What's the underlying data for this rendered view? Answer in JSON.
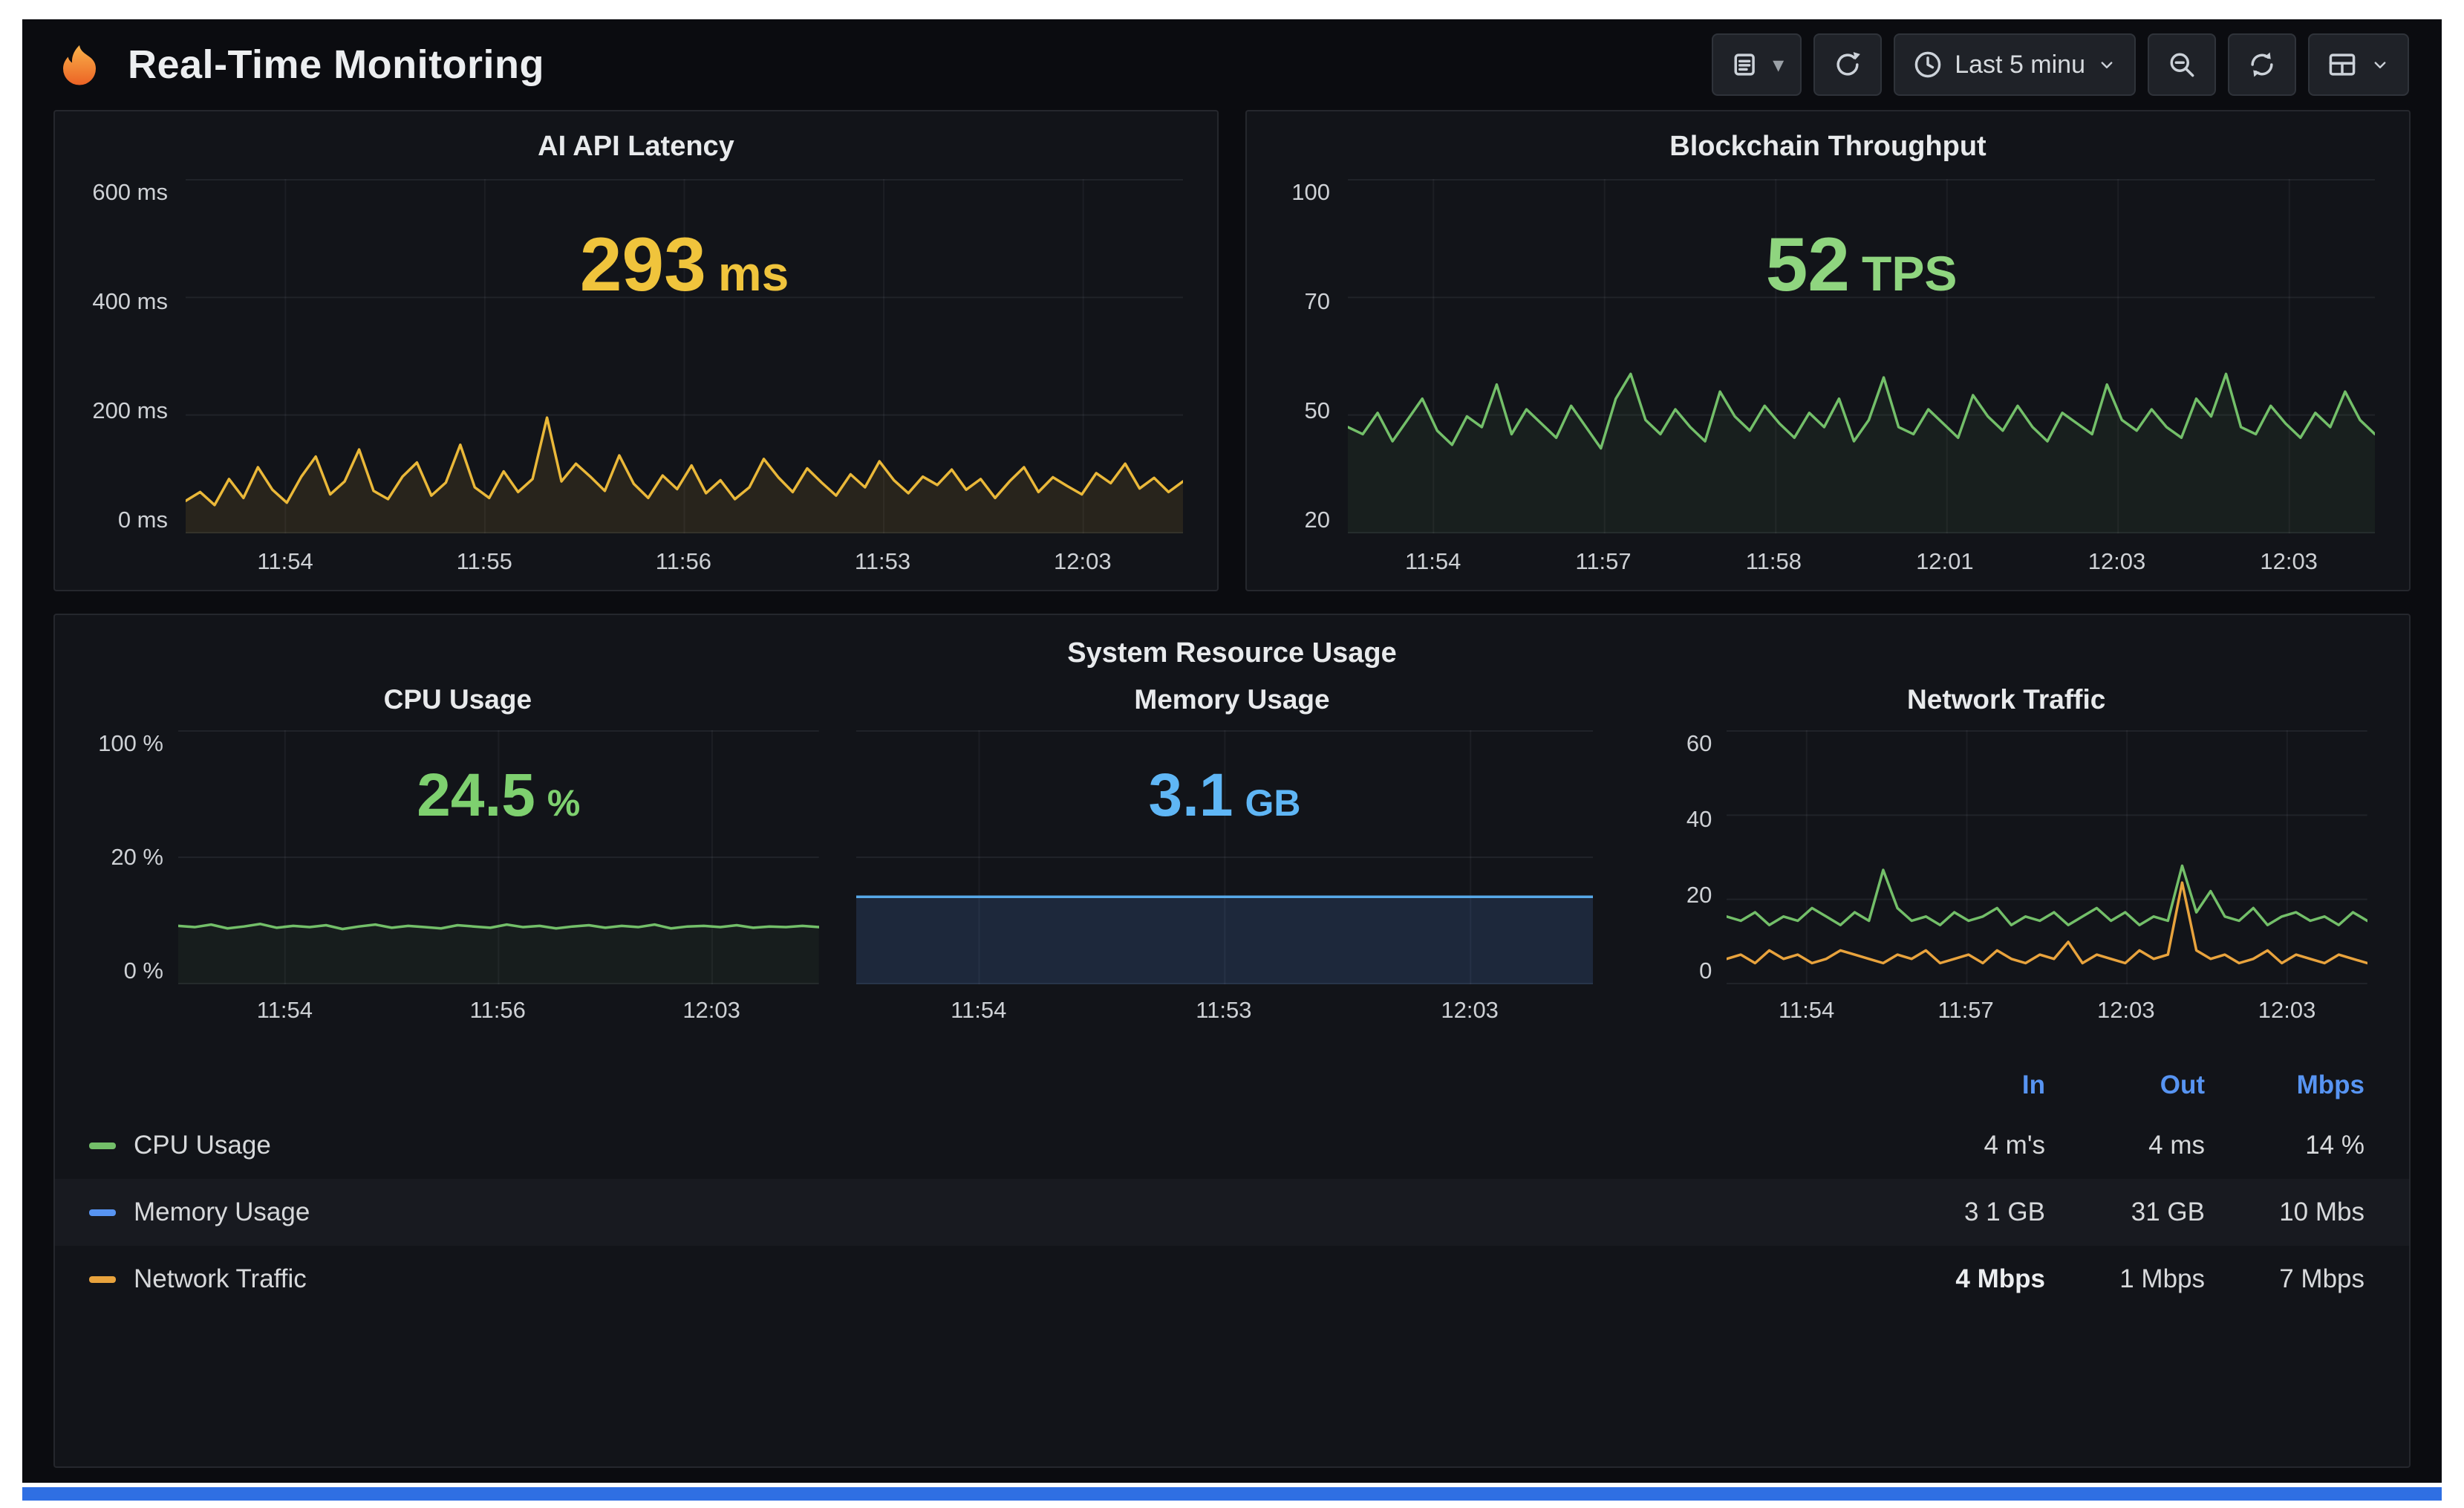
{
  "colors": {
    "yellow": "#f0c43c",
    "green": "#73bf69",
    "green_bright": "#8fd57f",
    "blue": "#5794f2",
    "blue_bright": "#5fb6f5",
    "orange": "#e8a33d",
    "accent_bar": "#2f6fe3"
  },
  "icons": {
    "logo": "grafana-flame",
    "toolbar": [
      "list-dropdown",
      "cycle-arrow",
      "clock",
      "magnifier-minus",
      "refresh-arrows",
      "panel-layout-chevron"
    ]
  },
  "header": {
    "title": "Real-Time Monitoring",
    "time_range_label": "Last 5 minu",
    "time_caret": "⌄",
    "list_caret": "▾"
  },
  "panels": {
    "latency": {
      "title": "AI API Latency",
      "stat_value": "293",
      "stat_unit": "ms",
      "stat_color": "#f0c43c",
      "yticks": [
        "600 ms",
        "400 ms",
        "200 ms",
        "0 ms"
      ],
      "xticks": [
        "11:54",
        "11:55",
        "11:56",
        "11:53",
        "12:03"
      ],
      "chart": {
        "type": "line",
        "color": "#eab839",
        "fill": "rgba(234,184,57,0.10)",
        "ylim": [
          0,
          600
        ],
        "hgrid": 4,
        "vgrid": 5,
        "values": [
          55,
          70,
          48,
          92,
          60,
          112,
          74,
          52,
          96,
          130,
          66,
          88,
          142,
          72,
          58,
          96,
          120,
          64,
          86,
          150,
          78,
          60,
          105,
          70,
          92,
          196,
          88,
          118,
          96,
          72,
          132,
          84,
          60,
          98,
          75,
          115,
          68,
          90,
          58,
          78,
          126,
          95,
          70,
          110,
          86,
          64,
          100,
          78,
          122,
          90,
          68,
          96,
          82,
          108,
          74,
          92,
          60,
          88,
          112,
          70,
          95,
          80,
          66,
          102,
          85,
          118,
          76,
          94,
          70,
          88
        ]
      }
    },
    "blockchain": {
      "title": "Blockchain Throughput",
      "stat_value": "52",
      "stat_unit": "TPS",
      "stat_color": "#8fd57f",
      "yticks": [
        "100",
        "70",
        "50",
        "20"
      ],
      "xticks": [
        "11:54",
        "11:57",
        "11:58",
        "12:01",
        "12:03",
        "12:03"
      ],
      "chart": {
        "type": "line",
        "color": "#73bf69",
        "fill": "rgba(115,191,105,0.07)",
        "ylim": [
          0,
          100
        ],
        "hgrid": 4,
        "vgrid": 6,
        "values": [
          30,
          28,
          34,
          26,
          32,
          38,
          29,
          25,
          33,
          30,
          42,
          28,
          35,
          31,
          27,
          36,
          30,
          24,
          38,
          45,
          32,
          28,
          35,
          30,
          26,
          40,
          33,
          29,
          36,
          31,
          27,
          34,
          30,
          38,
          26,
          32,
          44,
          30,
          28,
          35,
          31,
          27,
          39,
          33,
          29,
          36,
          30,
          26,
          34,
          31,
          28,
          42,
          32,
          29,
          35,
          30,
          27,
          38,
          33,
          45,
          30,
          28,
          36,
          31,
          27,
          34,
          30,
          40,
          32,
          28
        ]
      }
    },
    "system": {
      "title": "System Resource Usage",
      "cpu": {
        "title": "CPU Usage",
        "stat_value": "24.5",
        "stat_unit": "%",
        "stat_color": "#7ed06f",
        "yticks": [
          "100 %",
          "20 %",
          "0 %"
        ],
        "xticks": [
          "11:54",
          "11:56",
          "12:03"
        ],
        "chart": {
          "type": "line",
          "color": "#73bf69",
          "fill": "rgba(115,191,105,0.06)",
          "ylim": [
            0,
            40
          ],
          "hgrid": 3,
          "vgrid": 3,
          "values": [
            9.2,
            9.0,
            9.4,
            8.8,
            9.1,
            9.5,
            8.9,
            9.2,
            9.0,
            9.3,
            8.7,
            9.1,
            9.4,
            8.9,
            9.2,
            9.0,
            8.8,
            9.3,
            9.1,
            8.9,
            9.4,
            9.0,
            9.2,
            8.8,
            9.1,
            9.3,
            8.9,
            9.2,
            9.0,
            9.4,
            8.8,
            9.1,
            9.2,
            9.0,
            9.3,
            8.9,
            9.1,
            9.0,
            9.2,
            9.0
          ]
        }
      },
      "memory": {
        "title": "Memory Usage",
        "stat_value": "3.1",
        "stat_unit": "GB",
        "stat_color": "#5fb6f5",
        "yticks": [],
        "xticks": [
          "11:54",
          "11:53",
          "12:03"
        ],
        "chart": {
          "type": "area",
          "color": "#57a8e8",
          "fill": "rgba(87,148,242,0.16)",
          "ylim": [
            0,
            9
          ],
          "hgrid": 3,
          "vgrid": 3,
          "values": [
            3.1,
            3.1,
            3.1,
            3.1,
            3.1,
            3.1,
            3.1,
            3.1,
            3.1,
            3.1
          ]
        }
      },
      "network": {
        "title": "Network Traffic",
        "yticks": [
          "60",
          "40",
          "20",
          "0"
        ],
        "xticks": [
          "11:54",
          "11:57",
          "12:03",
          "12:03"
        ],
        "chart": {
          "type": "line",
          "ylim": [
            0,
            60
          ],
          "hgrid": 4,
          "vgrid": 4,
          "series": [
            {
              "name": "in",
              "color": "#73bf69",
              "values": [
                16,
                15,
                17,
                14,
                16,
                15,
                18,
                16,
                14,
                17,
                15,
                27,
                18,
                15,
                16,
                14,
                17,
                15,
                16,
                18,
                14,
                16,
                15,
                17,
                14,
                16,
                18,
                15,
                17,
                14,
                16,
                15,
                28,
                17,
                22,
                16,
                15,
                18,
                14,
                16,
                17,
                15,
                16,
                14,
                17,
                15
              ]
            },
            {
              "name": "out",
              "color": "#e8a33d",
              "values": [
                6,
                7,
                5,
                8,
                6,
                7,
                5,
                6,
                8,
                7,
                6,
                5,
                7,
                6,
                8,
                5,
                6,
                7,
                5,
                8,
                6,
                5,
                7,
                6,
                10,
                5,
                7,
                6,
                5,
                8,
                6,
                7,
                24,
                8,
                6,
                7,
                5,
                6,
                8,
                5,
                7,
                6,
                5,
                7,
                6,
                5
              ]
            }
          ]
        }
      }
    }
  },
  "legend": {
    "columns": [
      "In",
      "Out",
      "Mbps"
    ],
    "rows": [
      {
        "label": "CPU Usage",
        "color": "#73bf69",
        "v1": "4 m's",
        "v2": "4 ms",
        "v3": "14 %"
      },
      {
        "label": "Memory Usage",
        "color": "#5794f2",
        "v1": "3 1 GB",
        "v2": "31 GB",
        "v3": "10 Mbs"
      },
      {
        "label": "Network Traffic",
        "color": "#e8a33d",
        "v1": "4 Mbps",
        "v2": "1 Mbps",
        "v3": "7 Mbps"
      }
    ]
  }
}
